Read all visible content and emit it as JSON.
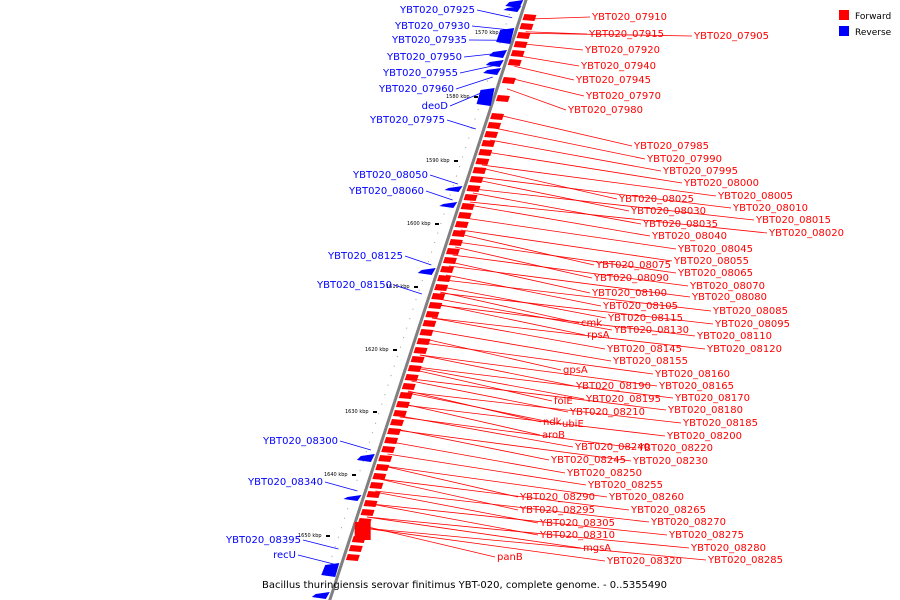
{
  "caption": "Bacillus thuringiensis serovar finitimus YBT-020, complete genome. - 0..5355490",
  "legend": [
    {
      "label": "Forward",
      "color": "#ff0000"
    },
    {
      "label": "Reverse",
      "color": "#0000ff"
    }
  ],
  "colors": {
    "forward": "#ff0000",
    "reverse": "#0000ff",
    "backbone": "#808080"
  },
  "ticks": [
    "1570 kbp",
    "1580 kbp",
    "1590 kbp",
    "1600 kbp",
    "1610 kbp",
    "1620 kbp",
    "1630 kbp",
    "1640 kbp",
    "1650 kbp"
  ],
  "reverse_labels": [
    "YBT020_07925",
    "YBT020_07930",
    "YBT020_07935",
    "YBT020_07950",
    "YBT020_07955",
    "YBT020_07960",
    "deoD",
    "YBT020_07975",
    "YBT020_08050",
    "YBT020_08060",
    "YBT020_08125",
    "YBT020_08150",
    "YBT020_08300",
    "YBT020_08340",
    "YBT020_08395",
    "recU"
  ],
  "forward_labels": [
    "YBT020_07910",
    "YBT020_07915",
    "YBT020_07905",
    "YBT020_07920",
    "YBT020_07940",
    "YBT020_07945",
    "YBT020_07970",
    "YBT020_07980",
    "YBT020_07985",
    "YBT020_07990",
    "YBT020_07995",
    "YBT020_08000",
    "YBT020_08005",
    "YBT020_08010",
    "YBT020_08025",
    "YBT020_08015",
    "YBT020_08030",
    "YBT020_08020",
    "YBT020_08035",
    "YBT020_08040",
    "YBT020_08045",
    "YBT020_08055",
    "YBT020_08075",
    "YBT020_08065",
    "YBT020_08090",
    "YBT020_08070",
    "YBT020_08100",
    "YBT020_08080",
    "YBT020_08105",
    "YBT020_08085",
    "YBT020_08115",
    "YBT020_08095",
    "cmk",
    "YBT020_08130",
    "YBT020_08110",
    "rpsA",
    "YBT020_08120",
    "YBT020_08145",
    "YBT020_08155",
    "gpsA",
    "YBT020_08160",
    "YBT020_08190",
    "YBT020_08165",
    "folE",
    "YBT020_08195",
    "YBT020_08170",
    "YBT020_08210",
    "YBT020_08180",
    "ndk",
    "ubiE",
    "YBT020_08185",
    "aroB",
    "YBT020_08200",
    "YBT020_08240",
    "YBT020_08220",
    "YBT020_08245",
    "YBT020_08230",
    "YBT020_08250",
    "YBT020_08255",
    "YBT020_08290",
    "YBT020_08260",
    "YBT020_08295",
    "YBT020_08265",
    "YBT020_08305",
    "YBT020_08270",
    "YBT020_08310",
    "YBT020_08275",
    "mgsA",
    "YBT020_08280",
    "panB",
    "YBT020_08320",
    "YBT020_08285"
  ]
}
